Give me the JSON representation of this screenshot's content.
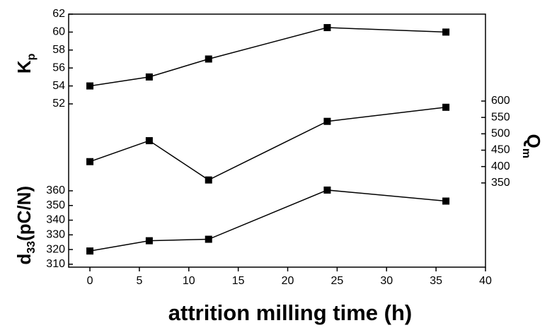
{
  "chart_data": {
    "type": "line",
    "xlabel": "attrition milling time (h)",
    "x": [
      0,
      6,
      12,
      24,
      36
    ],
    "xlim": [
      -2.15,
      40
    ],
    "xticks": [
      0,
      5,
      10,
      15,
      20,
      25,
      30,
      35,
      40
    ],
    "series": [
      {
        "label": [
          "K",
          "p"
        ],
        "color": "#000000",
        "side": "left",
        "ylim": [
          51,
          62
        ],
        "yticks": [
          52,
          54,
          56,
          58,
          60,
          62
        ],
        "values": [
          54,
          55,
          57,
          60.5,
          60
        ]
      },
      {
        "label": [
          "Q",
          "m"
        ],
        "color": "#000000",
        "side": "right",
        "ylim": [
          300,
          625
        ],
        "yticks": [
          350,
          400,
          450,
          500,
          550,
          600
        ],
        "values": [
          415,
          479,
          359,
          538,
          581
        ]
      },
      {
        "label": [
          "d",
          "33",
          "(pC/N)"
        ],
        "color": "#000000",
        "side": "left",
        "ylim": [
          308,
          365
        ],
        "yticks": [
          310,
          320,
          330,
          340,
          350,
          360
        ],
        "values": [
          319,
          326,
          327,
          360.5,
          353
        ]
      }
    ]
  }
}
